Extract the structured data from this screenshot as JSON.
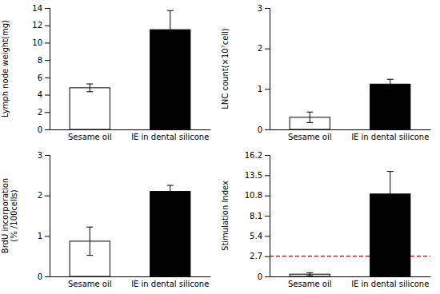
{
  "chart_data": [
    {
      "type": "bar",
      "ylabel": "Lymph node weight(mg)",
      "categories": [
        "Sesame oil",
        "IE in dental silicone"
      ],
      "values": [
        4.8,
        11.5
      ],
      "errors": [
        0.45,
        2.2
      ],
      "colors": [
        "white",
        "black"
      ],
      "ylim": [
        0,
        14
      ],
      "yticks": [
        0,
        2,
        4,
        6,
        8,
        10,
        12,
        14
      ]
    },
    {
      "type": "bar",
      "ylabel": "LNC count(×10⁷cell)",
      "categories": [
        "Sesame oil",
        "IE in dental silicone"
      ],
      "values": [
        0.3,
        1.12
      ],
      "errors": [
        0.13,
        0.12
      ],
      "colors": [
        "white",
        "black"
      ],
      "ylim": [
        0,
        3
      ],
      "yticks": [
        0,
        1,
        2,
        3
      ]
    },
    {
      "type": "bar",
      "ylabel": "BrdU incorporation\n(% /100cells)",
      "categories": [
        "Sesame oil",
        "IE in dental silicone"
      ],
      "values": [
        0.87,
        2.1
      ],
      "errors": [
        0.35,
        0.15
      ],
      "colors": [
        "white",
        "black"
      ],
      "ylim": [
        0,
        3
      ],
      "yticks": [
        0,
        1,
        2,
        3
      ]
    },
    {
      "type": "bar",
      "ylabel": "Stimulation Index",
      "categories": [
        "Sesame oil",
        "IE in dental silicone"
      ],
      "values": [
        0.3,
        11.0
      ],
      "errors": [
        0.2,
        3.0
      ],
      "colors": [
        "white",
        "black"
      ],
      "ylim": [
        0,
        16.2
      ],
      "yticks": [
        0,
        2.7,
        5.4,
        8.1,
        10.8,
        13.5,
        16.2
      ],
      "hline": 2.7,
      "hline_color": "#cc0000"
    }
  ]
}
